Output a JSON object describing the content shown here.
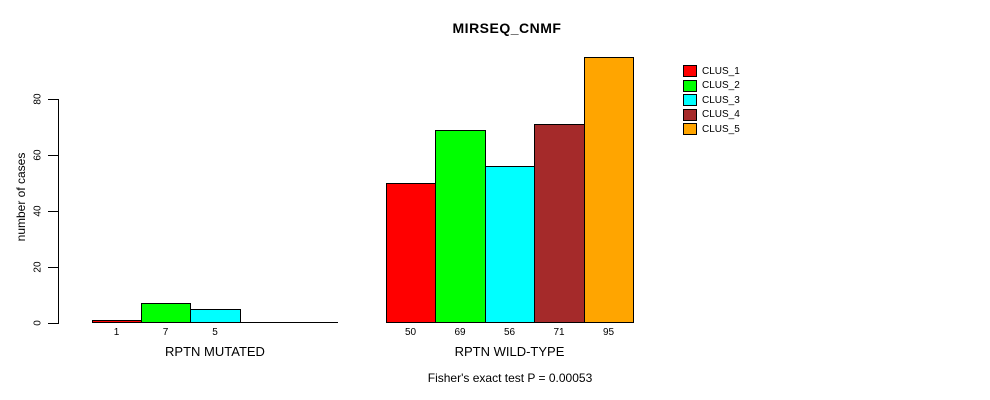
{
  "chart_data": {
    "type": "bar",
    "title": "MIRSEQ_CNMF",
    "ylabel": "number of cases",
    "ylim": [
      0,
      97
    ],
    "yticks": [
      0,
      20,
      40,
      60,
      80
    ],
    "grid": false,
    "legend_position": "top-right",
    "clusters": [
      {
        "name": "CLUS_1",
        "color": "#FF0000"
      },
      {
        "name": "CLUS_2",
        "color": "#00FF00"
      },
      {
        "name": "CLUS_3",
        "color": "#00FFFF"
      },
      {
        "name": "CLUS_4",
        "color": "#A52A2A"
      },
      {
        "name": "CLUS_5",
        "color": "#FFA500"
      }
    ],
    "groups": [
      {
        "label": "RPTN MUTATED",
        "values": [
          1,
          7,
          5,
          0,
          0
        ]
      },
      {
        "label": "RPTN WILD-TYPE",
        "values": [
          50,
          69,
          56,
          71,
          95
        ]
      }
    ],
    "annotation": "Fisher's exact test P = 0.00053"
  }
}
